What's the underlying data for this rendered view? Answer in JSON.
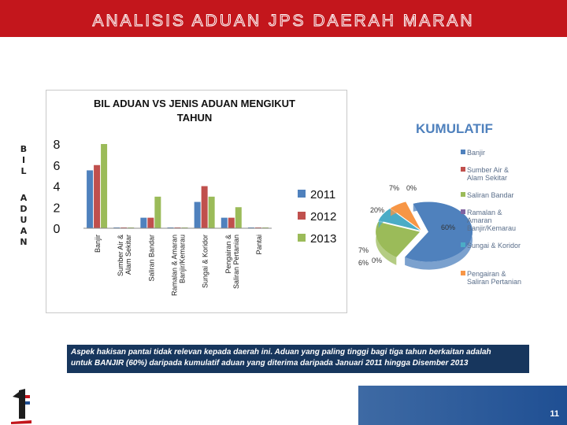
{
  "page": {
    "title": "ANALISIS ADUAN  JPS DAERAH MARAN",
    "side_label": "BIL ADUAN",
    "page_number": "11"
  },
  "colors": {
    "banner": "#c3161c",
    "s2011": "#4f81bd",
    "s2012": "#c0504d",
    "s2013": "#9bbb59",
    "caption_bg": "#17365d"
  },
  "caption": {
    "line1": "Aspek hakisan pantai tidak relevan kepada daerah ini. Aduan yang paling tinggi bagi tiga tahun berkaitan adalah",
    "line2": "untuk BANJIR (60%) daripada kumulatif aduan yang diterima daripada Januari  2011 hingga Disember 2013"
  },
  "chart_data": [
    {
      "type": "bar",
      "title": "BIL ADUAN VS JENIS ADUAN MENGIKUT TAHUN",
      "ylabel": "BIL ADUAN",
      "yticks": [
        "8",
        "6",
        "4",
        "2",
        "0"
      ],
      "ylim": [
        0,
        8
      ],
      "categories": [
        [
          "Banjir"
        ],
        [
          "Sumber Air &",
          "Alam Sekitar"
        ],
        [
          "Saliran Bandar"
        ],
        [
          "Ramalan  & Amaran",
          "Banjir/Kemarau"
        ],
        [
          "Sungai & Koridor"
        ],
        [
          "Pengairan &",
          "Saliran Pertanian"
        ],
        [
          "Pantai"
        ]
      ],
      "series": [
        {
          "name": "2011",
          "color": "#4f81bd",
          "values": [
            5.5,
            0,
            1,
            0,
            2.5,
            1,
            0
          ]
        },
        {
          "name": "2012",
          "color": "#c0504d",
          "values": [
            6,
            0,
            1,
            0,
            4,
            1,
            0
          ]
        },
        {
          "name": "2013",
          "color": "#9bbb59",
          "values": [
            8,
            0,
            3,
            0,
            3,
            2,
            0
          ]
        }
      ]
    },
    {
      "type": "pie",
      "title": "KUMULATIF",
      "labels": [
        "Banjir",
        "Sumber Air & Alam Sekitar",
        "Saliran Bandar",
        "Ramalan & Amaran Banjir/Kemarau",
        "Sungai & Koridor",
        "Pengairan & Saliran Pertanian"
      ],
      "legend": [
        [
          "Banjir"
        ],
        [
          "Sumber Air &",
          "Alam Sekitar"
        ],
        [
          "Saliran Bandar"
        ],
        [
          "Ramalan &",
          "Amaran",
          "Banjir/Kemarau"
        ],
        [
          "Sungai & Koridor"
        ],
        [
          "Pengairan &",
          "Saliran Pertanian"
        ]
      ],
      "values": [
        60,
        0,
        20,
        0,
        7,
        6
      ],
      "extra_label": "7%",
      "value_labels": [
        "60%",
        "0%",
        "20%",
        "0%",
        "7%",
        "6%"
      ],
      "colors": [
        "#4f81bd",
        "#c0504d",
        "#9bbb59",
        "#8064a2",
        "#4bacc6",
        "#f79646"
      ],
      "legend_placement": "right"
    }
  ]
}
